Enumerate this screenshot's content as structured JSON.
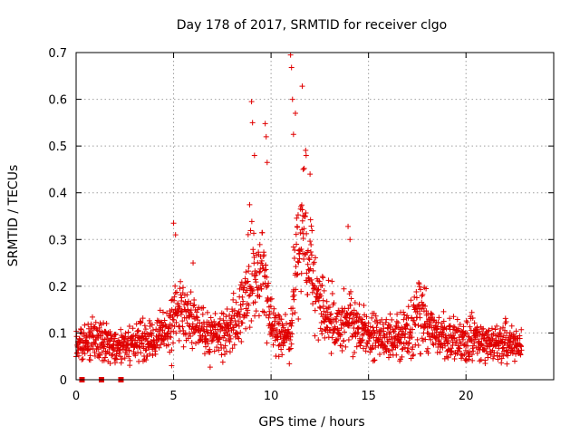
{
  "chart_data": {
    "type": "scatter",
    "title": "Day 178 of 2017, SRMTID for receiver clgo",
    "xlabel": "GPS time / hours",
    "ylabel": "SRMTID / TECUs",
    "xlim": [
      0,
      24.5
    ],
    "ylim": [
      0,
      0.7
    ],
    "x_ticks": [
      0,
      5,
      10,
      15,
      20
    ],
    "x_tick_labels": [
      "0",
      "5",
      "10",
      "15",
      "20"
    ],
    "y_ticks": [
      0,
      0.1,
      0.2,
      0.3,
      0.4,
      0.5,
      0.6,
      0.7
    ],
    "y_tick_labels": [
      "0",
      "0.1",
      "0.2",
      "0.3",
      "0.4",
      "0.5",
      "0.6",
      "0.7"
    ],
    "grid": true,
    "marker": "plus",
    "marker_color": "#e00000",
    "series": [
      {
        "name": "SRMTID",
        "x_start": 0.0,
        "x_end": 22.85,
        "sample_interval_hours": 0.0125,
        "profile": [
          [
            0.0,
            0.07
          ],
          [
            1.0,
            0.09
          ],
          [
            2.0,
            0.07
          ],
          [
            3.0,
            0.08
          ],
          [
            4.0,
            0.09
          ],
          [
            4.6,
            0.1
          ],
          [
            5.0,
            0.15
          ],
          [
            5.5,
            0.14
          ],
          [
            6.0,
            0.12
          ],
          [
            7.0,
            0.09
          ],
          [
            8.0,
            0.11
          ],
          [
            8.5,
            0.15
          ],
          [
            9.0,
            0.24
          ],
          [
            9.3,
            0.2
          ],
          [
            9.6,
            0.22
          ],
          [
            10.0,
            0.12
          ],
          [
            10.5,
            0.09
          ],
          [
            11.0,
            0.1
          ],
          [
            11.3,
            0.27
          ],
          [
            11.7,
            0.32
          ],
          [
            12.2,
            0.22
          ],
          [
            12.5,
            0.15
          ],
          [
            13.0,
            0.13
          ],
          [
            13.5,
            0.11
          ],
          [
            14.0,
            0.14
          ],
          [
            14.5,
            0.11
          ],
          [
            15.0,
            0.1
          ],
          [
            16.0,
            0.09
          ],
          [
            17.0,
            0.1
          ],
          [
            17.8,
            0.15
          ],
          [
            18.5,
            0.1
          ],
          [
            19.0,
            0.09
          ],
          [
            20.0,
            0.09
          ],
          [
            21.0,
            0.08
          ],
          [
            22.0,
            0.08
          ],
          [
            22.8,
            0.07
          ]
        ],
        "notable_points": [
          [
            5.0,
            0.335
          ],
          [
            5.1,
            0.31
          ],
          [
            6.0,
            0.25
          ],
          [
            9.0,
            0.595
          ],
          [
            9.05,
            0.55
          ],
          [
            9.15,
            0.48
          ],
          [
            9.7,
            0.548
          ],
          [
            9.75,
            0.52
          ],
          [
            9.8,
            0.465
          ],
          [
            11.0,
            0.695
          ],
          [
            11.05,
            0.668
          ],
          [
            11.1,
            0.6
          ],
          [
            11.25,
            0.57
          ],
          [
            11.15,
            0.525
          ],
          [
            11.6,
            0.628
          ],
          [
            11.65,
            0.45
          ],
          [
            11.8,
            0.48
          ],
          [
            12.0,
            0.44
          ],
          [
            13.95,
            0.328
          ],
          [
            14.05,
            0.3
          ],
          [
            17.6,
            0.205
          ],
          [
            4.9,
            0.03
          ]
        ],
        "zero_points": [
          0.3,
          1.3,
          2.3
        ]
      }
    ]
  }
}
